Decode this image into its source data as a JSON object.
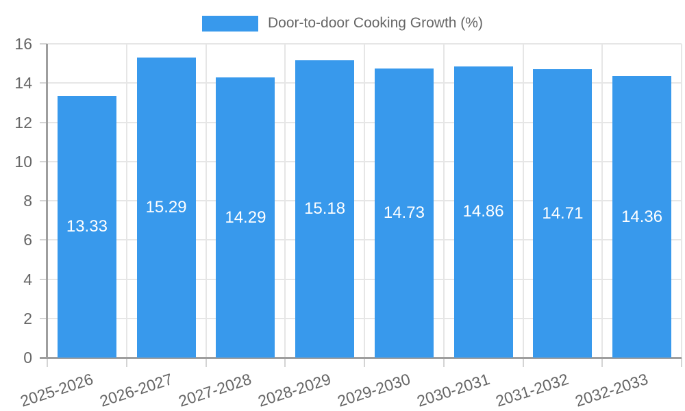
{
  "chart_data": {
    "type": "bar",
    "title": "Door-to-door Cooking Growth (%)",
    "legend_position": "top",
    "categories": [
      "2025-2026",
      "2026-2027",
      "2027-2028",
      "2028-2029",
      "2029-2030",
      "2030-2031",
      "2031-2032",
      "2032-2033"
    ],
    "series": [
      {
        "name": "Door-to-door Cooking Growth (%)",
        "values": [
          13.33,
          15.29,
          14.29,
          15.18,
          14.73,
          14.86,
          14.71,
          14.36
        ]
      }
    ],
    "value_labels": [
      "13.33",
      "15.29",
      "14.29",
      "15.18",
      "14.73",
      "14.86",
      "14.71",
      "14.36"
    ],
    "xlabel": "",
    "ylabel": "",
    "ylim": [
      0,
      16
    ],
    "ytick_step": 2,
    "yticks": [
      0,
      2,
      4,
      6,
      8,
      10,
      12,
      14,
      16
    ],
    "grid": true,
    "x_label_rotation_deg": -18,
    "colors": {
      "bar": "#3899EC",
      "value_label": "#FFFFFF",
      "axis_text": "#666666",
      "grid_line": "#E6E6E6",
      "axis_line": "#9E9E9E",
      "tick_mark": "#D4D4D4",
      "background": "#FFFFFF"
    }
  }
}
